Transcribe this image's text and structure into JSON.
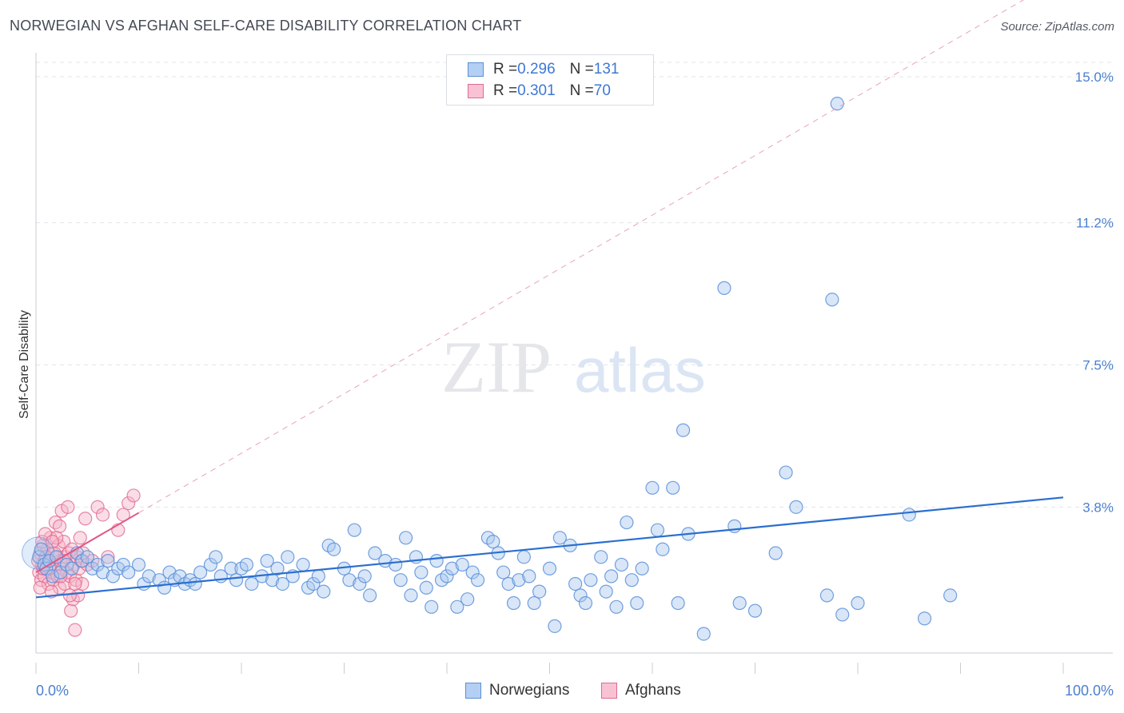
{
  "title": "NORWEGIAN VS AFGHAN SELF-CARE DISABILITY CORRELATION CHART",
  "source": "Source: ZipAtlas.com",
  "watermark": {
    "zip": "ZIP",
    "atlas": "atlas"
  },
  "colors": {
    "norwegian_fill": "#a9c8f0",
    "norwegian_stroke": "#5b8fd8",
    "norwegian_line": "#2a6fd0",
    "afghan_fill": "#f7b3c8",
    "afghan_stroke": "#e06a90",
    "afghan_line": "#e05585",
    "tick_text": "#4a7fd0",
    "grid": "#e2e5ea"
  },
  "legend": {
    "rows": [
      {
        "r_label": "R = ",
        "r_value": "0.296",
        "n_label": "N = ",
        "n_value": "131"
      },
      {
        "r_label": "R = ",
        "r_value": "0.301",
        "n_label": "N = ",
        "n_value": "70"
      }
    ]
  },
  "bottom_legend": {
    "norwegians": "Norwegians",
    "afghans": "Afghans"
  },
  "chart_data": {
    "type": "scatter",
    "xlabel": "",
    "ylabel": "Self-Care Disability",
    "xlim": [
      0,
      100
    ],
    "ylim": [
      0,
      15
    ],
    "x_tick_labels": [
      "0.0%",
      "100.0%"
    ],
    "y_ticks": [
      3.8,
      7.5,
      11.2,
      15.0
    ],
    "y_tick_labels": [
      "3.8%",
      "7.5%",
      "11.2%",
      "15.0%"
    ],
    "grid": true,
    "series": [
      {
        "name": "Norwegians",
        "trend": {
          "x": [
            0,
            100
          ],
          "y": [
            1.45,
            4.05
          ]
        },
        "points": [
          [
            0.3,
            2.5
          ],
          [
            0.5,
            2.7
          ],
          [
            0.8,
            2.3
          ],
          [
            1.0,
            2.2
          ],
          [
            1.3,
            2.4
          ],
          [
            1.6,
            2.0
          ],
          [
            2.0,
            2.5
          ],
          [
            2.4,
            2.1
          ],
          [
            3.0,
            2.3
          ],
          [
            3.5,
            2.2
          ],
          [
            4.0,
            2.6
          ],
          [
            4.5,
            2.4
          ],
          [
            5.0,
            2.5
          ],
          [
            5.5,
            2.2
          ],
          [
            6.0,
            2.3
          ],
          [
            6.5,
            2.1
          ],
          [
            7.0,
            2.4
          ],
          [
            7.5,
            2.0
          ],
          [
            8.0,
            2.2
          ],
          [
            8.5,
            2.3
          ],
          [
            9.0,
            2.1
          ],
          [
            10.0,
            2.3
          ],
          [
            10.5,
            1.8
          ],
          [
            11.0,
            2.0
          ],
          [
            12.0,
            1.9
          ],
          [
            12.5,
            1.7
          ],
          [
            13.0,
            2.1
          ],
          [
            13.5,
            1.9
          ],
          [
            14.0,
            2.0
          ],
          [
            14.5,
            1.8
          ],
          [
            15.0,
            1.9
          ],
          [
            15.5,
            1.8
          ],
          [
            16.0,
            2.1
          ],
          [
            17.0,
            2.3
          ],
          [
            17.5,
            2.5
          ],
          [
            18.0,
            2.0
          ],
          [
            19.0,
            2.2
          ],
          [
            19.5,
            1.9
          ],
          [
            20.0,
            2.2
          ],
          [
            20.5,
            2.3
          ],
          [
            21.0,
            1.8
          ],
          [
            22.0,
            2.0
          ],
          [
            22.5,
            2.4
          ],
          [
            23.0,
            1.9
          ],
          [
            23.5,
            2.2
          ],
          [
            24.0,
            1.8
          ],
          [
            24.5,
            2.5
          ],
          [
            25.0,
            2.0
          ],
          [
            26.0,
            2.3
          ],
          [
            26.5,
            1.7
          ],
          [
            27.0,
            1.8
          ],
          [
            27.5,
            2.0
          ],
          [
            28.0,
            1.6
          ],
          [
            28.5,
            2.8
          ],
          [
            29.0,
            2.7
          ],
          [
            30.0,
            2.2
          ],
          [
            30.5,
            1.9
          ],
          [
            31.0,
            3.2
          ],
          [
            31.5,
            1.8
          ],
          [
            32.0,
            2.0
          ],
          [
            32.5,
            1.5
          ],
          [
            33.0,
            2.6
          ],
          [
            34.0,
            2.4
          ],
          [
            35.0,
            2.3
          ],
          [
            35.5,
            1.9
          ],
          [
            36.0,
            3.0
          ],
          [
            36.5,
            1.5
          ],
          [
            37.0,
            2.5
          ],
          [
            37.5,
            2.1
          ],
          [
            38.0,
            1.7
          ],
          [
            38.5,
            1.2
          ],
          [
            39.0,
            2.4
          ],
          [
            39.5,
            1.9
          ],
          [
            40.0,
            2.0
          ],
          [
            40.5,
            2.2
          ],
          [
            41.0,
            1.2
          ],
          [
            41.5,
            2.3
          ],
          [
            42.0,
            1.4
          ],
          [
            42.5,
            2.1
          ],
          [
            43.0,
            1.9
          ],
          [
            44.0,
            3.0
          ],
          [
            44.5,
            2.9
          ],
          [
            45.0,
            2.6
          ],
          [
            45.5,
            2.1
          ],
          [
            46.0,
            1.8
          ],
          [
            46.5,
            1.3
          ],
          [
            47.0,
            1.9
          ],
          [
            47.5,
            2.5
          ],
          [
            48.0,
            2.0
          ],
          [
            48.5,
            1.3
          ],
          [
            49.0,
            1.6
          ],
          [
            50.0,
            2.2
          ],
          [
            50.5,
            0.7
          ],
          [
            51.0,
            3.0
          ],
          [
            52.0,
            2.8
          ],
          [
            52.5,
            1.8
          ],
          [
            53.0,
            1.5
          ],
          [
            53.5,
            1.3
          ],
          [
            54.0,
            1.9
          ],
          [
            55.0,
            2.5
          ],
          [
            55.5,
            1.6
          ],
          [
            56.0,
            2.0
          ],
          [
            56.5,
            1.2
          ],
          [
            57.0,
            2.3
          ],
          [
            57.5,
            3.4
          ],
          [
            58.0,
            1.9
          ],
          [
            58.5,
            1.3
          ],
          [
            59.0,
            2.2
          ],
          [
            60.0,
            4.3
          ],
          [
            60.5,
            3.2
          ],
          [
            61.0,
            2.7
          ],
          [
            62.0,
            4.3
          ],
          [
            62.5,
            1.3
          ],
          [
            63.0,
            5.8
          ],
          [
            63.5,
            3.1
          ],
          [
            65.0,
            0.5
          ],
          [
            67.0,
            9.5
          ],
          [
            68.0,
            3.3
          ],
          [
            68.5,
            1.3
          ],
          [
            70.0,
            1.1
          ],
          [
            72.0,
            2.6
          ],
          [
            73.0,
            4.7
          ],
          [
            74.0,
            3.8
          ],
          [
            77.0,
            1.5
          ],
          [
            77.5,
            9.2
          ],
          [
            78.0,
            14.3
          ],
          [
            78.5,
            1.0
          ],
          [
            80.0,
            1.3
          ],
          [
            85.0,
            3.6
          ],
          [
            86.5,
            0.9
          ],
          [
            89.0,
            1.5
          ]
        ]
      },
      {
        "name": "Afghans",
        "trend": {
          "x": [
            0,
            10
          ],
          "y": [
            2.1,
            3.65
          ]
        },
        "points": [
          [
            0.2,
            2.4
          ],
          [
            0.3,
            2.1
          ],
          [
            0.4,
            2.6
          ],
          [
            0.5,
            1.9
          ],
          [
            0.6,
            2.3
          ],
          [
            0.7,
            2.8
          ],
          [
            0.8,
            2.0
          ],
          [
            0.9,
            2.5
          ],
          [
            1.0,
            2.2
          ],
          [
            1.1,
            2.7
          ],
          [
            1.2,
            1.8
          ],
          [
            1.3,
            2.4
          ],
          [
            1.4,
            3.0
          ],
          [
            1.5,
            2.1
          ],
          [
            1.6,
            2.6
          ],
          [
            1.7,
            1.9
          ],
          [
            1.8,
            2.3
          ],
          [
            1.9,
            3.4
          ],
          [
            2.0,
            2.5
          ],
          [
            2.1,
            2.0
          ],
          [
            2.2,
            2.8
          ],
          [
            2.3,
            1.7
          ],
          [
            2.4,
            2.4
          ],
          [
            2.5,
            3.7
          ],
          [
            2.6,
            2.2
          ],
          [
            2.7,
            2.9
          ],
          [
            2.8,
            1.8
          ],
          [
            2.9,
            2.5
          ],
          [
            3.0,
            2.1
          ],
          [
            3.1,
            3.8
          ],
          [
            3.2,
            2.6
          ],
          [
            3.3,
            2.0
          ],
          [
            3.4,
            1.1
          ],
          [
            3.5,
            2.7
          ],
          [
            3.6,
            1.4
          ],
          [
            3.7,
            2.3
          ],
          [
            3.8,
            0.6
          ],
          [
            3.9,
            1.9
          ],
          [
            4.0,
            2.5
          ],
          [
            4.1,
            1.5
          ],
          [
            4.2,
            2.2
          ],
          [
            4.3,
            3.0
          ],
          [
            4.4,
            2.4
          ],
          [
            4.5,
            1.8
          ],
          [
            4.6,
            2.6
          ],
          [
            4.8,
            3.5
          ],
          [
            5.0,
            2.3
          ],
          [
            5.5,
            2.4
          ],
          [
            6.0,
            3.8
          ],
          [
            6.5,
            3.6
          ],
          [
            7.0,
            2.5
          ],
          [
            8.0,
            3.2
          ],
          [
            8.5,
            3.6
          ],
          [
            9.0,
            3.9
          ],
          [
            9.5,
            4.1
          ],
          [
            0.6,
            2.9
          ],
          [
            0.9,
            3.1
          ],
          [
            1.3,
            2.2
          ],
          [
            1.8,
            2.6
          ],
          [
            2.3,
            3.3
          ],
          [
            0.4,
            1.7
          ],
          [
            1.0,
            2.5
          ],
          [
            1.5,
            1.6
          ],
          [
            2.0,
            3.0
          ],
          [
            2.7,
            2.4
          ],
          [
            3.3,
            1.5
          ],
          [
            0.7,
            2.2
          ],
          [
            1.6,
            2.9
          ],
          [
            2.4,
            2.0
          ],
          [
            3.8,
            1.8
          ]
        ]
      }
    ]
  }
}
